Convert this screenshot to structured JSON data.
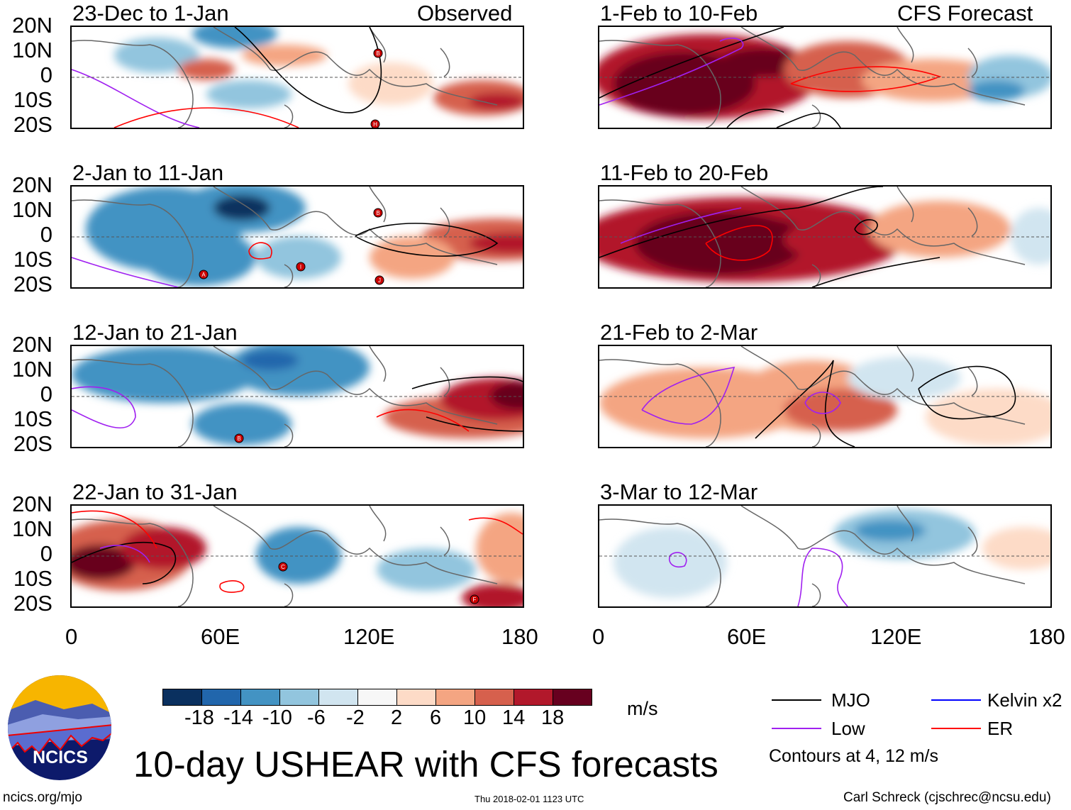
{
  "header": {
    "left_label": "Observed",
    "right_label": "CFS Forecast"
  },
  "panels": {
    "observed": [
      {
        "title": "23-Dec to 1-Jan",
        "storms": [
          "B",
          "H"
        ]
      },
      {
        "title": "2-Jan to 11-Jan",
        "storms": [
          "B",
          "A",
          "I",
          "J"
        ]
      },
      {
        "title": "12-Jan to 21-Jan",
        "storms": [
          "B"
        ]
      },
      {
        "title": "22-Jan to 31-Jan",
        "storms": [
          "C",
          "F"
        ]
      }
    ],
    "forecast": [
      {
        "title": "1-Feb to 10-Feb"
      },
      {
        "title": "11-Feb to 20-Feb"
      },
      {
        "title": "21-Feb to 2-Mar"
      },
      {
        "title": "3-Mar to 12-Mar"
      }
    ]
  },
  "lat_ticks": [
    "20N",
    "10N",
    "0",
    "10S",
    "20S"
  ],
  "lon_ticks": [
    "0",
    "60E",
    "120E",
    "180"
  ],
  "colorbar": {
    "colors": [
      "#0a305f",
      "#2166ac",
      "#4393c3",
      "#92c5de",
      "#d1e5f0",
      "#f7f7f7",
      "#fddbc7",
      "#f4a582",
      "#d6604d",
      "#b2182b",
      "#67001f"
    ],
    "labels": [
      "-18",
      "-14",
      "-10",
      "-6",
      "-2",
      "2",
      "6",
      "10",
      "14",
      "18"
    ],
    "units": "m/s"
  },
  "legend": {
    "items": [
      {
        "label": "MJO",
        "color": "#000000"
      },
      {
        "label": "Kelvin x2",
        "color": "#0000ff"
      },
      {
        "label": "Low",
        "color": "#a020f0"
      },
      {
        "label": "ER",
        "color": "#ff0000"
      }
    ],
    "note": "Contours at 4, 12 m/s"
  },
  "logo": {
    "text": "NCICS"
  },
  "title": "10-day USHEAR with CFS forecasts",
  "footer": {
    "url": "ncics.org/mjo",
    "timestamp": "Thu 2018-02-01 1123 UTC",
    "credit": "Carl Schreck (cjschrec@ncsu.edu)"
  }
}
